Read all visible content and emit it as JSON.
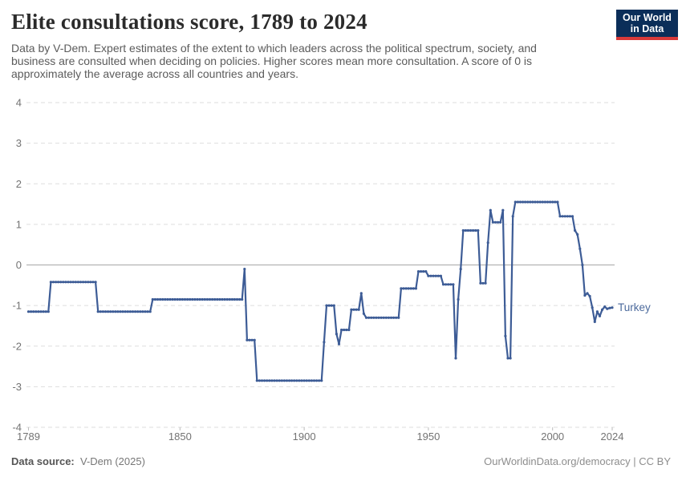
{
  "header": {
    "title": "Elite consultations score, 1789 to 2024",
    "subtitle_lines": [
      "Data by V-Dem. Expert estimates of the extent to which leaders across the political spectrum, society, and",
      "business are consulted when deciding on policies. Higher scores mean more consultation. A score of 0 is",
      "approximately the average across all countries and years."
    ]
  },
  "logo": {
    "line1": "Our World",
    "line2": "in Data",
    "bg_color": "#0b2e59",
    "bar_color": "#d93a3a"
  },
  "footer": {
    "source_label": "Data source:",
    "source_value": "V-Dem (2025)",
    "right_text": "OurWorldinData.org/democracy | CC BY"
  },
  "chart_data": {
    "type": "line",
    "title": "Elite consultations score, 1789 to 2024",
    "entity_label": "Turkey",
    "xlim": [
      1789,
      2024
    ],
    "ylim": [
      -4,
      4
    ],
    "x_ticks": [
      1789,
      1850,
      1900,
      1950,
      2000,
      2024
    ],
    "y_ticks": [
      4,
      3,
      2,
      1,
      0,
      -1,
      -2,
      -3,
      -4
    ],
    "grid": "horizontal-dashed",
    "zero_line": true,
    "legend_position": "end-of-line",
    "line_color": "#3d5c96",
    "label_color": "#4c6a9c",
    "axis_text_color": "#737373",
    "series": [
      {
        "name": "Turkey",
        "segments": [
          [
            1789,
            1797,
            -1.15
          ],
          [
            1798,
            1816,
            -0.42
          ],
          [
            1817,
            1838,
            -1.15
          ],
          [
            1839,
            1875,
            -0.85
          ],
          [
            1876,
            1876,
            -0.1
          ],
          [
            1877,
            1880,
            -1.85
          ],
          [
            1881,
            1907,
            -2.85
          ],
          [
            1908,
            1908,
            -1.9
          ],
          [
            1909,
            1912,
            -1.0
          ],
          [
            1913,
            1913,
            -1.7
          ],
          [
            1914,
            1914,
            -1.95
          ],
          [
            1915,
            1918,
            -1.6
          ],
          [
            1919,
            1922,
            -1.1
          ],
          [
            1923,
            1923,
            -0.7
          ],
          [
            1924,
            1924,
            -1.2
          ],
          [
            1925,
            1938,
            -1.3
          ],
          [
            1939,
            1945,
            -0.58
          ],
          [
            1946,
            1949,
            -0.16
          ],
          [
            1950,
            1955,
            -0.27
          ],
          [
            1956,
            1960,
            -0.48
          ],
          [
            1961,
            1961,
            -2.3
          ],
          [
            1962,
            1962,
            -0.85
          ],
          [
            1963,
            1963,
            -0.1
          ],
          [
            1964,
            1970,
            0.85
          ],
          [
            1971,
            1973,
            -0.45
          ],
          [
            1974,
            1974,
            0.55
          ],
          [
            1975,
            1975,
            1.35
          ],
          [
            1976,
            1979,
            1.05
          ],
          [
            1980,
            1980,
            1.35
          ],
          [
            1981,
            1981,
            -1.75
          ],
          [
            1982,
            1983,
            -2.3
          ],
          [
            1984,
            1984,
            1.2
          ],
          [
            1985,
            2002,
            1.55
          ],
          [
            2003,
            2008,
            1.2
          ],
          [
            2009,
            2009,
            0.85
          ],
          [
            2010,
            2010,
            0.75
          ],
          [
            2011,
            2011,
            0.4
          ],
          [
            2012,
            2012,
            0.0
          ],
          [
            2013,
            2013,
            -0.75
          ],
          [
            2014,
            2014,
            -0.7
          ],
          [
            2015,
            2015,
            -0.77
          ],
          [
            2016,
            2016,
            -1.05
          ],
          [
            2017,
            2017,
            -1.4
          ],
          [
            2018,
            2018,
            -1.15
          ],
          [
            2019,
            2019,
            -1.26
          ],
          [
            2020,
            2020,
            -1.1
          ],
          [
            2021,
            2021,
            -1.03
          ],
          [
            2022,
            2022,
            -1.08
          ],
          [
            2023,
            2023,
            -1.06
          ],
          [
            2024,
            2024,
            -1.05
          ]
        ]
      }
    ]
  }
}
